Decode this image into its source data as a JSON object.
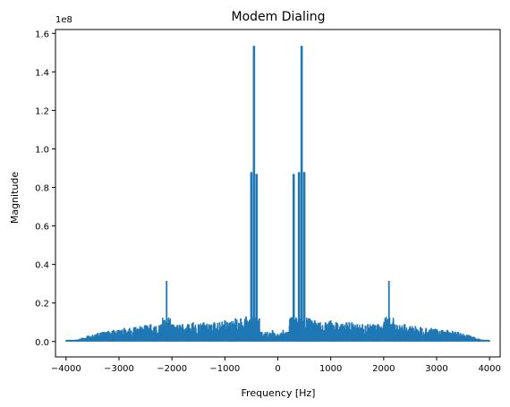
{
  "chart_data": {
    "type": "line",
    "title": "Modem Dialing",
    "xlabel": "Frequency [Hz]",
    "ylabel": "Magnitude",
    "y_scale_label": "1e8",
    "xlim": [
      -4200,
      4200
    ],
    "ylim": [
      -0.08,
      1.62
    ],
    "x_ticks": [
      -4000,
      -3000,
      -2000,
      -1000,
      0,
      1000,
      2000,
      3000,
      4000
    ],
    "x_tick_labels": [
      "−4000",
      "−3000",
      "−2000",
      "−1000",
      "0",
      "1000",
      "2000",
      "3000",
      "4000"
    ],
    "y_ticks": [
      0.0,
      0.2,
      0.4,
      0.6,
      0.8,
      1.0,
      1.2,
      1.4,
      1.6
    ],
    "y_tick_labels": [
      "0.0",
      "0.2",
      "0.4",
      "0.6",
      "0.8",
      "1.0",
      "1.2",
      "1.4",
      "1.6"
    ],
    "grid": false,
    "series_color": "#1f77b4",
    "series": [
      {
        "x": [
          -4000,
          -3900,
          -3800,
          -3700,
          -3600,
          -3500,
          -3400,
          -3300,
          -3200,
          -3100,
          -3000,
          -2900,
          -2800,
          -2700,
          -2600,
          -2500,
          -2400,
          -2300,
          -2200,
          -2100,
          -2000,
          -1900,
          -1800,
          -1700,
          -1600,
          -1500,
          -1400,
          -1300,
          -1200,
          -1100,
          -1000,
          -900,
          -800,
          -700,
          -600,
          -500,
          -450,
          -400,
          -350,
          -300,
          -200,
          -100,
          0,
          100,
          200,
          300,
          350,
          400,
          450,
          500,
          600,
          700,
          800,
          900,
          1000,
          1100,
          1200,
          1300,
          1400,
          1500,
          1600,
          1700,
          1800,
          1900,
          2000,
          2100,
          2200,
          2300,
          2400,
          2500,
          2600,
          2700,
          2800,
          2900,
          3000,
          3100,
          3200,
          3300,
          3400,
          3500,
          3600,
          3700,
          3800,
          3900,
          4000
        ],
        "values": [
          0.005,
          0.006,
          0.01,
          0.02,
          0.03,
          0.035,
          0.045,
          0.05,
          0.055,
          0.06,
          0.06,
          0.07,
          0.07,
          0.075,
          0.08,
          0.085,
          0.09,
          0.08,
          0.09,
          0.315,
          0.09,
          0.085,
          0.09,
          0.09,
          0.1,
          0.09,
          0.1,
          0.09,
          0.1,
          0.1,
          0.11,
          0.1,
          0.12,
          0.12,
          0.13,
          0.88,
          1.535,
          0.87,
          0.12,
          0.05,
          0.05,
          0.06,
          0.04,
          0.06,
          0.05,
          0.87,
          0.12,
          0.88,
          1.535,
          0.88,
          0.12,
          0.11,
          0.1,
          0.1,
          0.11,
          0.1,
          0.09,
          0.1,
          0.1,
          0.09,
          0.09,
          0.09,
          0.09,
          0.09,
          0.09,
          0.315,
          0.09,
          0.085,
          0.09,
          0.08,
          0.08,
          0.075,
          0.07,
          0.07,
          0.065,
          0.06,
          0.06,
          0.055,
          0.05,
          0.04,
          0.035,
          0.025,
          0.015,
          0.008,
          0.005
        ]
      }
    ]
  }
}
